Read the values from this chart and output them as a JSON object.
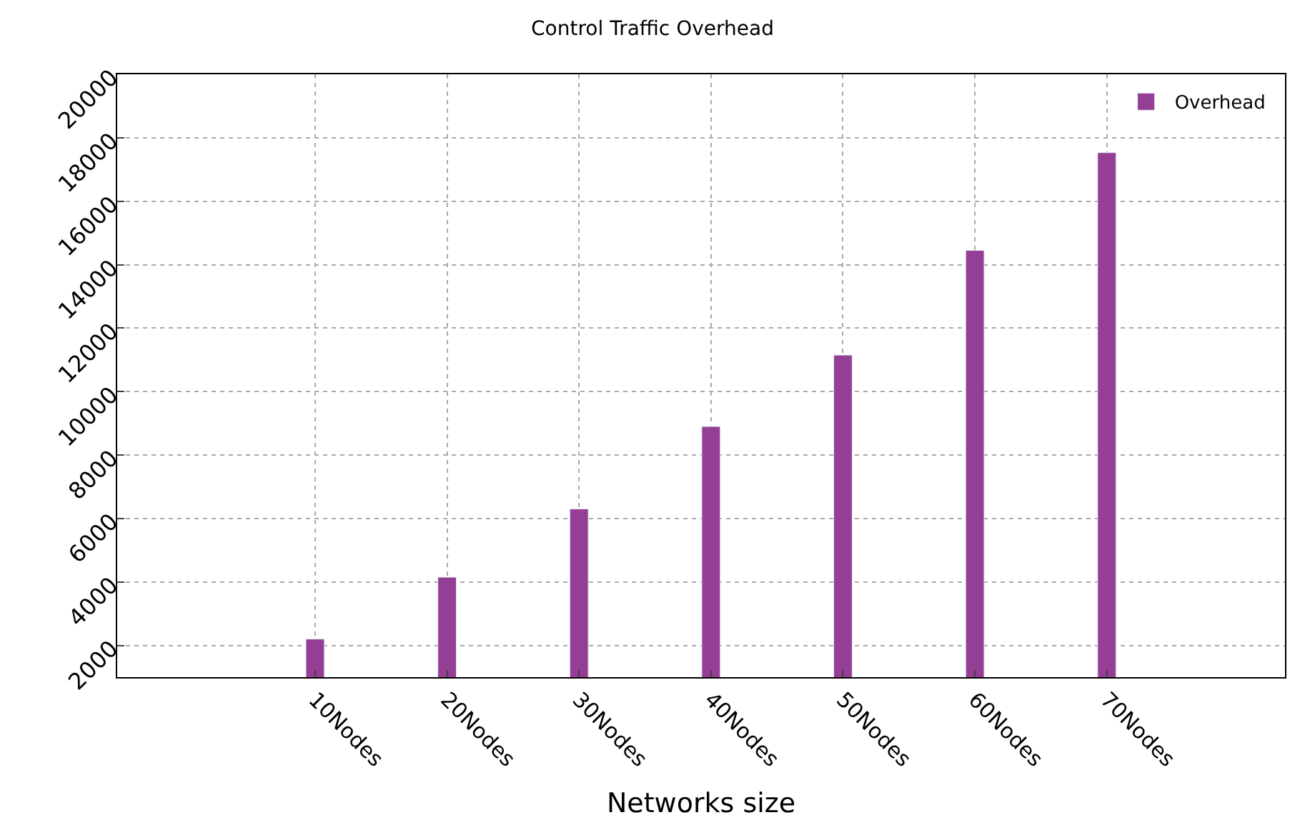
{
  "chart_data": {
    "type": "bar",
    "title": "Control Traffic Overhead",
    "xlabel": "Networks size",
    "categories": [
      "10Nodes",
      "20Nodes",
      "30Nodes",
      "40Nodes",
      "50Nodes",
      "60Nodes",
      "70Nodes"
    ],
    "series": [
      {
        "name": "Overhead",
        "color": "#953e95",
        "values": [
          2200,
          4150,
          6300,
          8900,
          11150,
          14450,
          17530
        ]
      }
    ],
    "ylim": [
      1000,
      20000
    ],
    "yticks": [
      2000,
      4000,
      6000,
      8000,
      10000,
      12000,
      14000,
      16000,
      18000,
      20000
    ],
    "grid": true,
    "legend": "top right"
  }
}
